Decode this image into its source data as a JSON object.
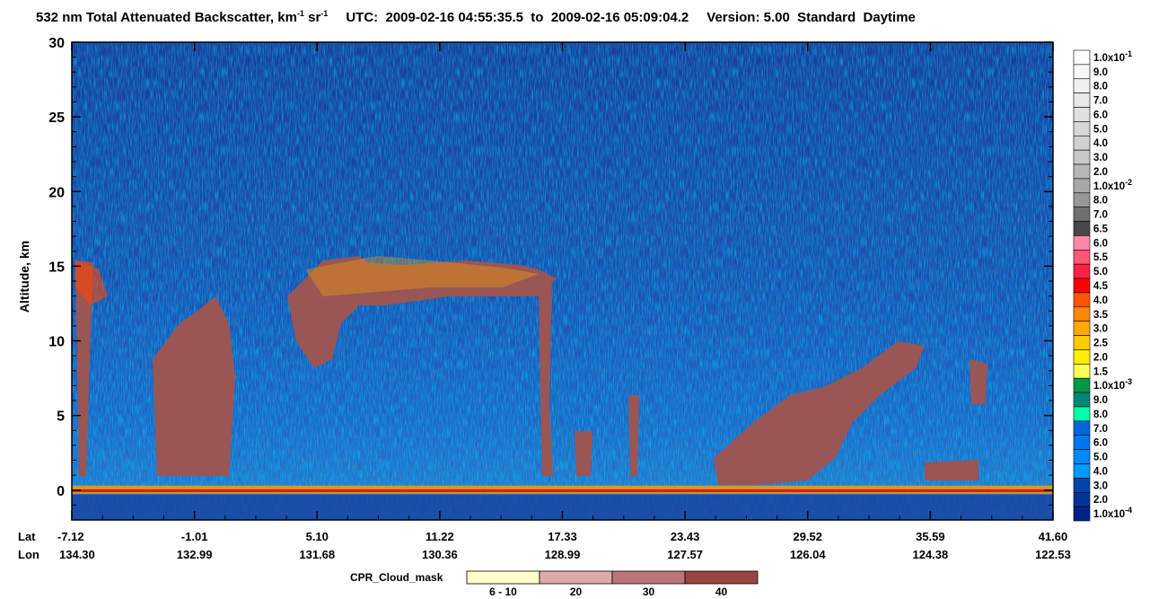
{
  "title": {
    "text_a": "532 nm Total Attenuated Backscatter, km",
    "sup_a": "-1",
    "text_b": " sr",
    "sup_b": "-1",
    "utc_label": "UTC:",
    "start": "2009-02-16 04:55:35.5",
    "to_word": "to",
    "end": "2009-02-16 05:09:04.2",
    "version": "Version: 5.00",
    "standard": "Standard",
    "daytime": "Daytime"
  },
  "chart_data": {
    "type": "heatmap",
    "ylabel": "Altitude, km",
    "ylim": [
      -2,
      30
    ],
    "yticks": [
      "30",
      "25",
      "20",
      "15",
      "10",
      "5",
      "0"
    ],
    "x_row_labels": [
      "Lat",
      "Lon"
    ],
    "lat_ticks": [
      "-7.12",
      "-1.01",
      "5.10",
      "11.22",
      "17.33",
      "23.43",
      "29.52",
      "35.59",
      "41.60"
    ],
    "lon_ticks": [
      "134.30",
      "132.99",
      "131.68",
      "130.36",
      "128.99",
      "127.57",
      "126.04",
      "124.38",
      "122.53"
    ],
    "colorbar": {
      "labels": [
        "1.0x10-1",
        "9.0",
        "8.0",
        "7.0",
        "6.0",
        "5.0",
        "4.0",
        "3.0",
        "2.0",
        "1.0x10-2",
        "8.0",
        "7.0",
        "6.5",
        "6.0",
        "5.5",
        "5.0",
        "4.5",
        "4.0",
        "3.5",
        "3.0",
        "2.5",
        "2.0",
        "1.5",
        "1.0x10-3",
        "9.0",
        "8.0",
        "7.0",
        "6.0",
        "5.0",
        "4.0",
        "3.0",
        "2.0",
        "1.0x10-4"
      ],
      "colors": [
        "#ffffff",
        "#f7f7f7",
        "#f0f0f0",
        "#e8e8e8",
        "#e0e0e0",
        "#d8d8d8",
        "#d0d0d0",
        "#c8c8c8",
        "#b8b8b8",
        "#a8a8a8",
        "#989898",
        "#707070",
        "#484848",
        "#ff88aa",
        "#ff5577",
        "#ff2244",
        "#ff0000",
        "#ff5500",
        "#ff8800",
        "#ffaa00",
        "#ffcc00",
        "#ffee00",
        "#ffff55",
        "#009944",
        "#008877",
        "#00ffaa",
        "#0066dd",
        "#0077ee",
        "#0088ff",
        "#0099ff",
        "#0044aa",
        "#003399",
        "#002288"
      ]
    },
    "cpr_cloud_mask": {
      "label": "CPR_Cloud_mask",
      "bins": [
        "6 - 10",
        "20",
        "30",
        "40"
      ],
      "colors": [
        "#ffffcc",
        "#ddaaaa",
        "#bb7777",
        "#994444"
      ]
    }
  }
}
